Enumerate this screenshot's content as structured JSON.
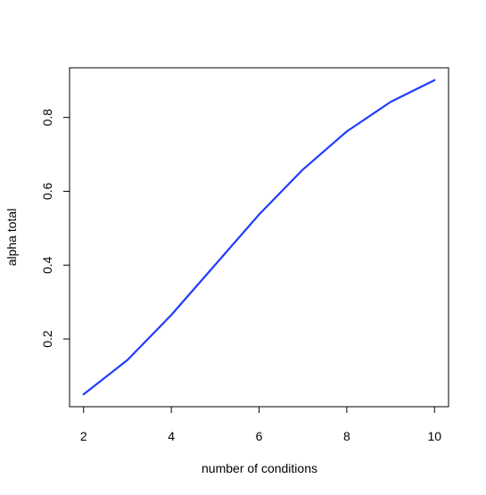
{
  "chart_data": {
    "type": "line",
    "title": "",
    "xlabel": "number of conditions",
    "ylabel": "alpha total",
    "x": [
      2,
      3,
      4,
      5,
      6,
      7,
      8,
      9,
      10
    ],
    "series": [
      {
        "values": [
          0.05,
          0.143,
          0.265,
          0.401,
          0.537,
          0.659,
          0.762,
          0.842,
          0.901
        ],
        "color": "#1f3cff"
      }
    ],
    "xticks": [
      2,
      4,
      6,
      8,
      10
    ],
    "yticks": [
      0.2,
      0.4,
      0.6,
      0.8
    ],
    "xtick_labels": [
      "2",
      "4",
      "6",
      "8",
      "10"
    ],
    "ytick_labels": [
      "0.2",
      "0.4",
      "0.6",
      "0.8"
    ],
    "xlim": [
      1.68,
      10.32
    ],
    "ylim": [
      0.0166,
      0.9344
    ],
    "grid": false,
    "legend": "none"
  }
}
